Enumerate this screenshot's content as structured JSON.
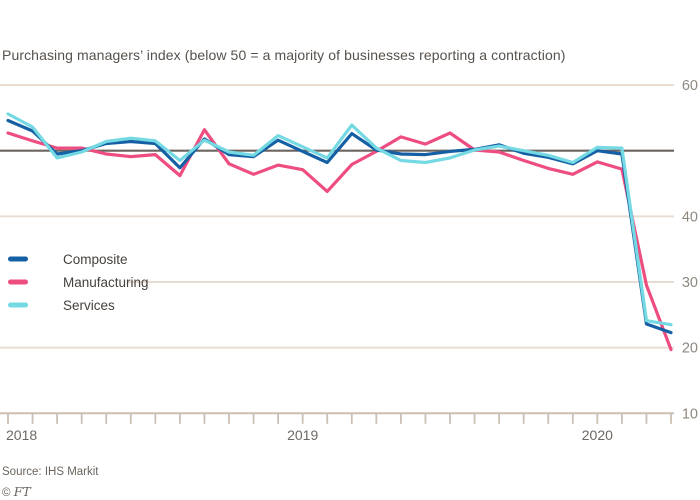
{
  "title": "Purchasing managers’ index (below 50 = a majority of businesses reporting a contraction)",
  "source": "Source: IHS Markit",
  "copyright": {
    "symbol": "©",
    "brand": "FT"
  },
  "colors": {
    "background": "#ffffff",
    "composite": "#1560a4",
    "manufacturing": "#ee4d80",
    "services": "#74d9e2",
    "gridline": "#e9dcd1",
    "threshold_line": "#6b6560",
    "axis": "#cbbeb2",
    "ytick_label": "#8f8880",
    "year_label": "#6f6861",
    "legend_text": "#46413d"
  },
  "legend": {
    "items": [
      {
        "label": "Composite",
        "color_key": "composite"
      },
      {
        "label": "Manufacturing",
        "color_key": "manufacturing"
      },
      {
        "label": "Services",
        "color_key": "services"
      }
    ]
  },
  "chart_data": {
    "type": "line",
    "title": "Purchasing managers’ index (below 50 = a majority of businesses reporting a contraction)",
    "x": [
      "2018-01",
      "2018-02",
      "2018-03",
      "2018-04",
      "2018-05",
      "2018-06",
      "2018-07",
      "2018-08",
      "2018-09",
      "2018-10",
      "2018-11",
      "2018-12",
      "2019-01",
      "2019-02",
      "2019-03",
      "2019-04",
      "2019-05",
      "2019-06",
      "2019-07",
      "2019-08",
      "2019-09",
      "2019-10",
      "2019-11",
      "2019-12",
      "2020-01",
      "2020-02",
      "2020-03",
      "2020-04"
    ],
    "series": [
      {
        "name": "Composite",
        "color_key": "composite",
        "values": [
          54.6,
          53.0,
          49.5,
          50.0,
          51.1,
          51.4,
          51.1,
          47.4,
          51.8,
          49.4,
          49.1,
          51.6,
          49.9,
          48.2,
          52.6,
          50.1,
          49.5,
          49.4,
          49.9,
          50.2,
          50.9,
          49.6,
          49.0,
          48.0,
          50.0,
          49.5,
          23.6,
          22.3
        ]
      },
      {
        "name": "Manufacturing",
        "color_key": "manufacturing",
        "values": [
          52.7,
          51.5,
          50.4,
          50.4,
          49.5,
          49.1,
          49.4,
          46.2,
          53.2,
          48.0,
          46.4,
          47.8,
          47.1,
          43.8,
          47.9,
          49.9,
          52.1,
          51.0,
          52.7,
          50.1,
          49.8,
          48.5,
          47.3,
          46.4,
          48.3,
          47.2,
          29.5,
          19.7
        ]
      },
      {
        "name": "Services",
        "color_key": "services",
        "values": [
          55.6,
          53.6,
          48.9,
          49.8,
          51.4,
          51.9,
          51.5,
          48.5,
          51.6,
          49.8,
          49.3,
          52.3,
          50.6,
          48.9,
          53.9,
          50.4,
          48.5,
          48.2,
          48.9,
          50.1,
          50.7,
          50.0,
          49.3,
          48.2,
          50.5,
          50.4,
          24.1,
          23.5
        ]
      }
    ],
    "ylim": [
      10,
      60
    ],
    "ytick_labels": [
      60,
      40,
      30,
      20,
      10
    ],
    "gridlines_light": [
      60,
      40,
      30,
      20
    ],
    "threshold": 50,
    "xtick_years": [
      {
        "label": "2018",
        "month_index": 0
      },
      {
        "label": "2019",
        "month_index": 12
      },
      {
        "label": "2020",
        "month_index": 24
      }
    ],
    "grid": "horizontal",
    "legend_position": "middle-left"
  }
}
